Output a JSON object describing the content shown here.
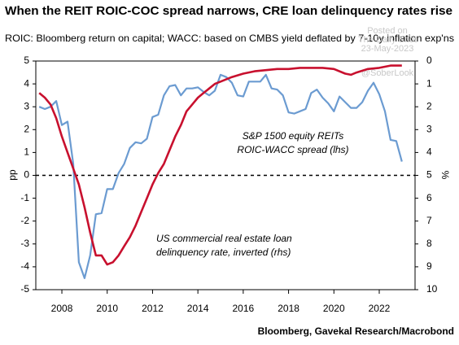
{
  "chart_data": {
    "type": "line",
    "title": "When the REIT ROIC-COC spread narrows, CRE loan delinquency rates rise",
    "subtitle": "ROIC: Bloomberg return on capital; WACC: based on CMBS yield deflated by 7-10y inflation exp'ns",
    "source": "Bloomberg, Gavekal Research/Macrobond",
    "watermark": [
      "Posted on",
      "The Daily Shot",
      "23-May-2023",
      "@SoberLook"
    ],
    "ylabel": "pp",
    "y2label": "%",
    "xlim": [
      2006.85,
      2023.58
    ],
    "xticks": [
      2008,
      2010,
      2012,
      2014,
      2016,
      2018,
      2020,
      2022
    ],
    "ylim": [
      -5,
      5
    ],
    "yticks": [
      -5,
      -4,
      -3,
      -2,
      -1,
      0,
      1,
      2,
      3,
      4,
      5
    ],
    "y2lim": [
      10,
      0
    ],
    "y2ticks": [
      0,
      1,
      2,
      3,
      4,
      5,
      6,
      7,
      8,
      9,
      10
    ],
    "reference_line": {
      "value": 0,
      "style": "dashed"
    },
    "series": [
      {
        "name": [
          "S&P 1500 equity REITs",
          "ROIC-WACC spread (lhs)"
        ],
        "color": "#6b9bd1",
        "axis": "y",
        "x": [
          2007.0,
          2007.25,
          2007.5,
          2007.75,
          2008.0,
          2008.25,
          2008.5,
          2008.75,
          2009.0,
          2009.25,
          2009.5,
          2009.75,
          2010.0,
          2010.25,
          2010.5,
          2010.75,
          2011.0,
          2011.25,
          2011.5,
          2011.75,
          2012.0,
          2012.25,
          2012.5,
          2012.75,
          2013.0,
          2013.25,
          2013.5,
          2013.75,
          2014.0,
          2014.25,
          2014.5,
          2014.75,
          2015.0,
          2015.25,
          2015.5,
          2015.75,
          2016.0,
          2016.25,
          2016.5,
          2016.75,
          2017.0,
          2017.25,
          2017.5,
          2017.75,
          2018.0,
          2018.25,
          2018.5,
          2018.75,
          2019.0,
          2019.25,
          2019.5,
          2019.75,
          2020.0,
          2020.25,
          2020.5,
          2020.75,
          2021.0,
          2021.25,
          2021.5,
          2021.75,
          2022.0,
          2022.25,
          2022.5,
          2022.75,
          2023.0
        ],
        "values": [
          3.0,
          2.9,
          3.0,
          3.25,
          2.2,
          2.35,
          0.5,
          -3.8,
          -4.5,
          -3.5,
          -1.7,
          -1.65,
          -0.6,
          -0.6,
          0.1,
          0.5,
          1.2,
          1.45,
          1.4,
          1.6,
          2.55,
          2.65,
          3.5,
          3.9,
          3.95,
          3.5,
          3.8,
          3.8,
          3.85,
          3.65,
          3.5,
          3.7,
          4.4,
          4.3,
          4.05,
          3.5,
          3.45,
          4.1,
          4.1,
          4.1,
          4.4,
          3.8,
          3.75,
          3.5,
          2.75,
          2.7,
          2.8,
          2.9,
          3.6,
          3.75,
          3.4,
          3.15,
          2.8,
          3.45,
          3.2,
          2.95,
          2.95,
          3.2,
          3.7,
          4.05,
          3.55,
          2.8,
          1.55,
          1.5,
          0.6
        ]
      },
      {
        "name": [
          "US commercial real estate loan",
          "delinquency rate, inverted (rhs)"
        ],
        "color": "#c8102e",
        "axis": "y2",
        "x": [
          2007.0,
          2007.25,
          2007.5,
          2007.75,
          2008.0,
          2008.25,
          2008.5,
          2008.75,
          2009.0,
          2009.25,
          2009.5,
          2009.75,
          2010.0,
          2010.25,
          2010.5,
          2010.75,
          2011.0,
          2011.25,
          2011.5,
          2011.75,
          2012.0,
          2012.25,
          2012.5,
          2012.75,
          2013.0,
          2013.25,
          2013.5,
          2013.75,
          2014.0,
          2014.25,
          2014.5,
          2014.75,
          2015.0,
          2015.5,
          2016.0,
          2016.5,
          2017.0,
          2017.5,
          2018.0,
          2018.5,
          2019.0,
          2019.5,
          2020.0,
          2020.5,
          2020.75,
          2021.0,
          2021.5,
          2022.0,
          2022.5,
          2023.0
        ],
        "values": [
          1.4,
          1.6,
          1.9,
          2.5,
          3.3,
          4.0,
          4.7,
          5.4,
          6.4,
          7.5,
          8.5,
          8.5,
          8.9,
          8.8,
          8.5,
          8.1,
          7.7,
          7.2,
          6.6,
          6.0,
          5.4,
          4.9,
          4.5,
          3.9,
          3.3,
          2.8,
          2.2,
          1.9,
          1.6,
          1.4,
          1.2,
          1.0,
          0.9,
          0.7,
          0.55,
          0.45,
          0.4,
          0.35,
          0.35,
          0.3,
          0.3,
          0.3,
          0.35,
          0.55,
          0.6,
          0.5,
          0.35,
          0.3,
          0.2,
          0.2
        ]
      }
    ]
  }
}
